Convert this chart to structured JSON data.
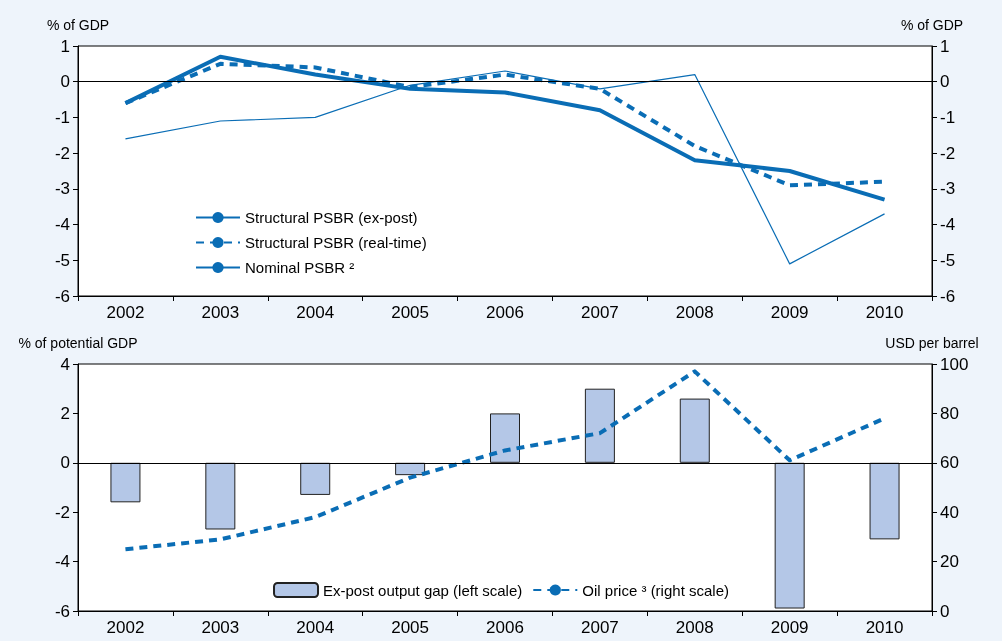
{
  "chart_data": [
    {
      "type": "line",
      "categories": [
        "2002",
        "2003",
        "2004",
        "2005",
        "2006",
        "2007",
        "2008",
        "2009",
        "2010"
      ],
      "ylabel": "% of GDP",
      "y2label": "% of GDP",
      "ylim": [
        -6,
        1
      ],
      "yticks": [
        -6,
        -5,
        -4,
        -3,
        -2,
        -1,
        0,
        1
      ],
      "y2lim": [
        -6,
        1
      ],
      "y2ticks": [
        -6,
        -5,
        -4,
        -3,
        -2,
        -1,
        0,
        1
      ],
      "grid": false,
      "legend": "bottom left",
      "marker": "none",
      "ref_lines": [
        {
          "axis": "y",
          "value": 0,
          "color": "#000000",
          "line_style": "solid"
        }
      ],
      "series": [
        {
          "name": "Structural PSBR (ex-post)",
          "color": "#0a6db5",
          "line_style": "solid",
          "values": [
            -0.6,
            0.7,
            0.2,
            -0.2,
            -0.3,
            -0.8,
            -2.2,
            -2.5,
            -3.3
          ]
        },
        {
          "name": "Structural PSBR (real-time)",
          "color": "#0a6db5",
          "line_style": "dashed",
          "values": [
            -0.6,
            0.5,
            0.4,
            -0.15,
            0.2,
            -0.2,
            -1.8,
            -2.9,
            -2.8
          ]
        },
        {
          "name": "Nominal PSBR ²",
          "color": "#0a6db5",
          "line_style": "solid",
          "values": [
            -1.6,
            -1.1,
            -1.0,
            -0.1,
            0.3,
            -0.2,
            0.2,
            -5.1,
            -3.7
          ]
        }
      ]
    },
    {
      "type": "bar",
      "categories": [
        "2002",
        "2003",
        "2004",
        "2005",
        "2006",
        "2007",
        "2008",
        "2009",
        "2010"
      ],
      "ylabel": "% of potential GDP",
      "y2label": "USD per barrel",
      "ylim": [
        -6,
        4
      ],
      "yticks": [
        -6,
        -4,
        -2,
        0,
        2,
        4
      ],
      "y2lim": [
        0,
        100
      ],
      "y2ticks": [
        0,
        20,
        40,
        60,
        80,
        100
      ],
      "grid": false,
      "legend": "bottom",
      "marker": "none",
      "ref_lines": [
        {
          "axis": "y",
          "value": 0,
          "color": "#000000",
          "line_style": "solid"
        }
      ],
      "series": [
        {
          "name": "Ex-post output gap (left scale)",
          "color": "#b4c7e7",
          "values": [
            -1.6,
            -2.7,
            -1.3,
            -0.5,
            2.0,
            3.0,
            2.6,
            -5.9,
            -3.1
          ]
        },
        {
          "name": "Oil price ³ (right scale)",
          "type": "line",
          "axis": "y2",
          "color": "#0a6db5",
          "line_style": "dashed",
          "values": [
            25,
            29,
            38,
            54,
            65,
            72,
            97,
            61,
            78
          ]
        }
      ]
    }
  ]
}
